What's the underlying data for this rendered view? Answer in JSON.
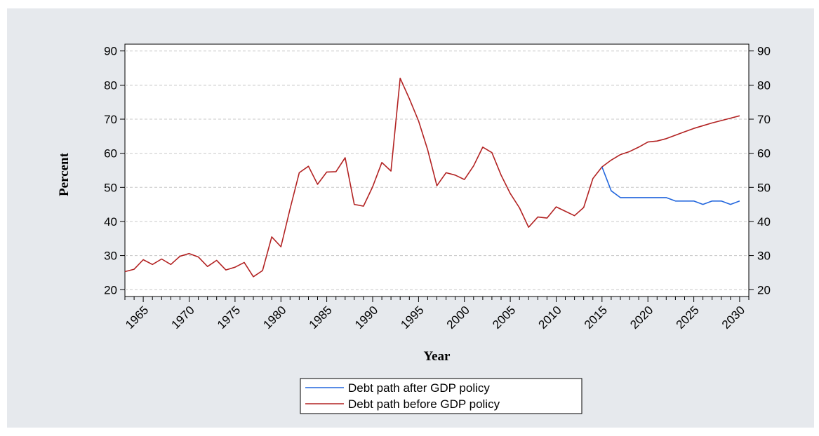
{
  "chart_data": {
    "type": "line",
    "xlabel": "Year",
    "ylabel": "Percent",
    "ylim": [
      18,
      92
    ],
    "xlim": [
      1963,
      2031
    ],
    "yticks": [
      20,
      30,
      40,
      50,
      60,
      70,
      80,
      90
    ],
    "xticks": [
      1965,
      1970,
      1975,
      1980,
      1985,
      1990,
      1995,
      2000,
      2005,
      2010,
      2015,
      2020,
      2025,
      2030
    ],
    "grid": true,
    "legend_position": "bottom-center",
    "series": [
      {
        "name": "Debt path after GDP policy",
        "color": "#2266dd",
        "x": [
          2015,
          2016,
          2017,
          2018,
          2019,
          2020,
          2021,
          2022,
          2023,
          2024,
          2025,
          2026,
          2027,
          2028,
          2029,
          2030
        ],
        "y": [
          56,
          49,
          47,
          47,
          47,
          47,
          47,
          47,
          46,
          46,
          46,
          45,
          46,
          46,
          45,
          46
        ]
      },
      {
        "name": "Debt path before GDP policy",
        "color": "#b22222",
        "x": [
          1963,
          1964,
          1965,
          1966,
          1967,
          1968,
          1969,
          1970,
          1971,
          1972,
          1973,
          1974,
          1975,
          1976,
          1977,
          1978,
          1979,
          1980,
          1981,
          1982,
          1983,
          1984,
          1985,
          1986,
          1987,
          1988,
          1989,
          1990,
          1991,
          1992,
          1993,
          1994,
          1995,
          1996,
          1997,
          1998,
          1999,
          2000,
          2001,
          2002,
          2003,
          2004,
          2005,
          2006,
          2007,
          2008,
          2009,
          2010,
          2011,
          2012,
          2013,
          2014,
          2015,
          2016,
          2017,
          2018,
          2019,
          2020,
          2021,
          2022,
          2023,
          2024,
          2025,
          2026,
          2027,
          2028,
          2029,
          2030
        ],
        "y": [
          25.3,
          26,
          28.8,
          27.4,
          29,
          27.4,
          29.8,
          30.6,
          29.6,
          26.8,
          28.6,
          25.8,
          26.6,
          28,
          23.8,
          25.6,
          35.5,
          32.6,
          43.7,
          54.3,
          56.2,
          50.9,
          54.5,
          54.6,
          58.7,
          45,
          44.5,
          50.2,
          57.3,
          54.8,
          82,
          76,
          69.5,
          61,
          50.5,
          54.3,
          53.6,
          52.3,
          56.3,
          61.8,
          60.2,
          53.6,
          48.2,
          44,
          38.3,
          41.3,
          41,
          44.3,
          43,
          41.7,
          44.1,
          52.6,
          56,
          58,
          59.6,
          60.5,
          61.8,
          63.3,
          63.6,
          64.3,
          65.3,
          66.3,
          67.3,
          68.1,
          68.9,
          69.6,
          70.3,
          71
        ]
      }
    ]
  }
}
